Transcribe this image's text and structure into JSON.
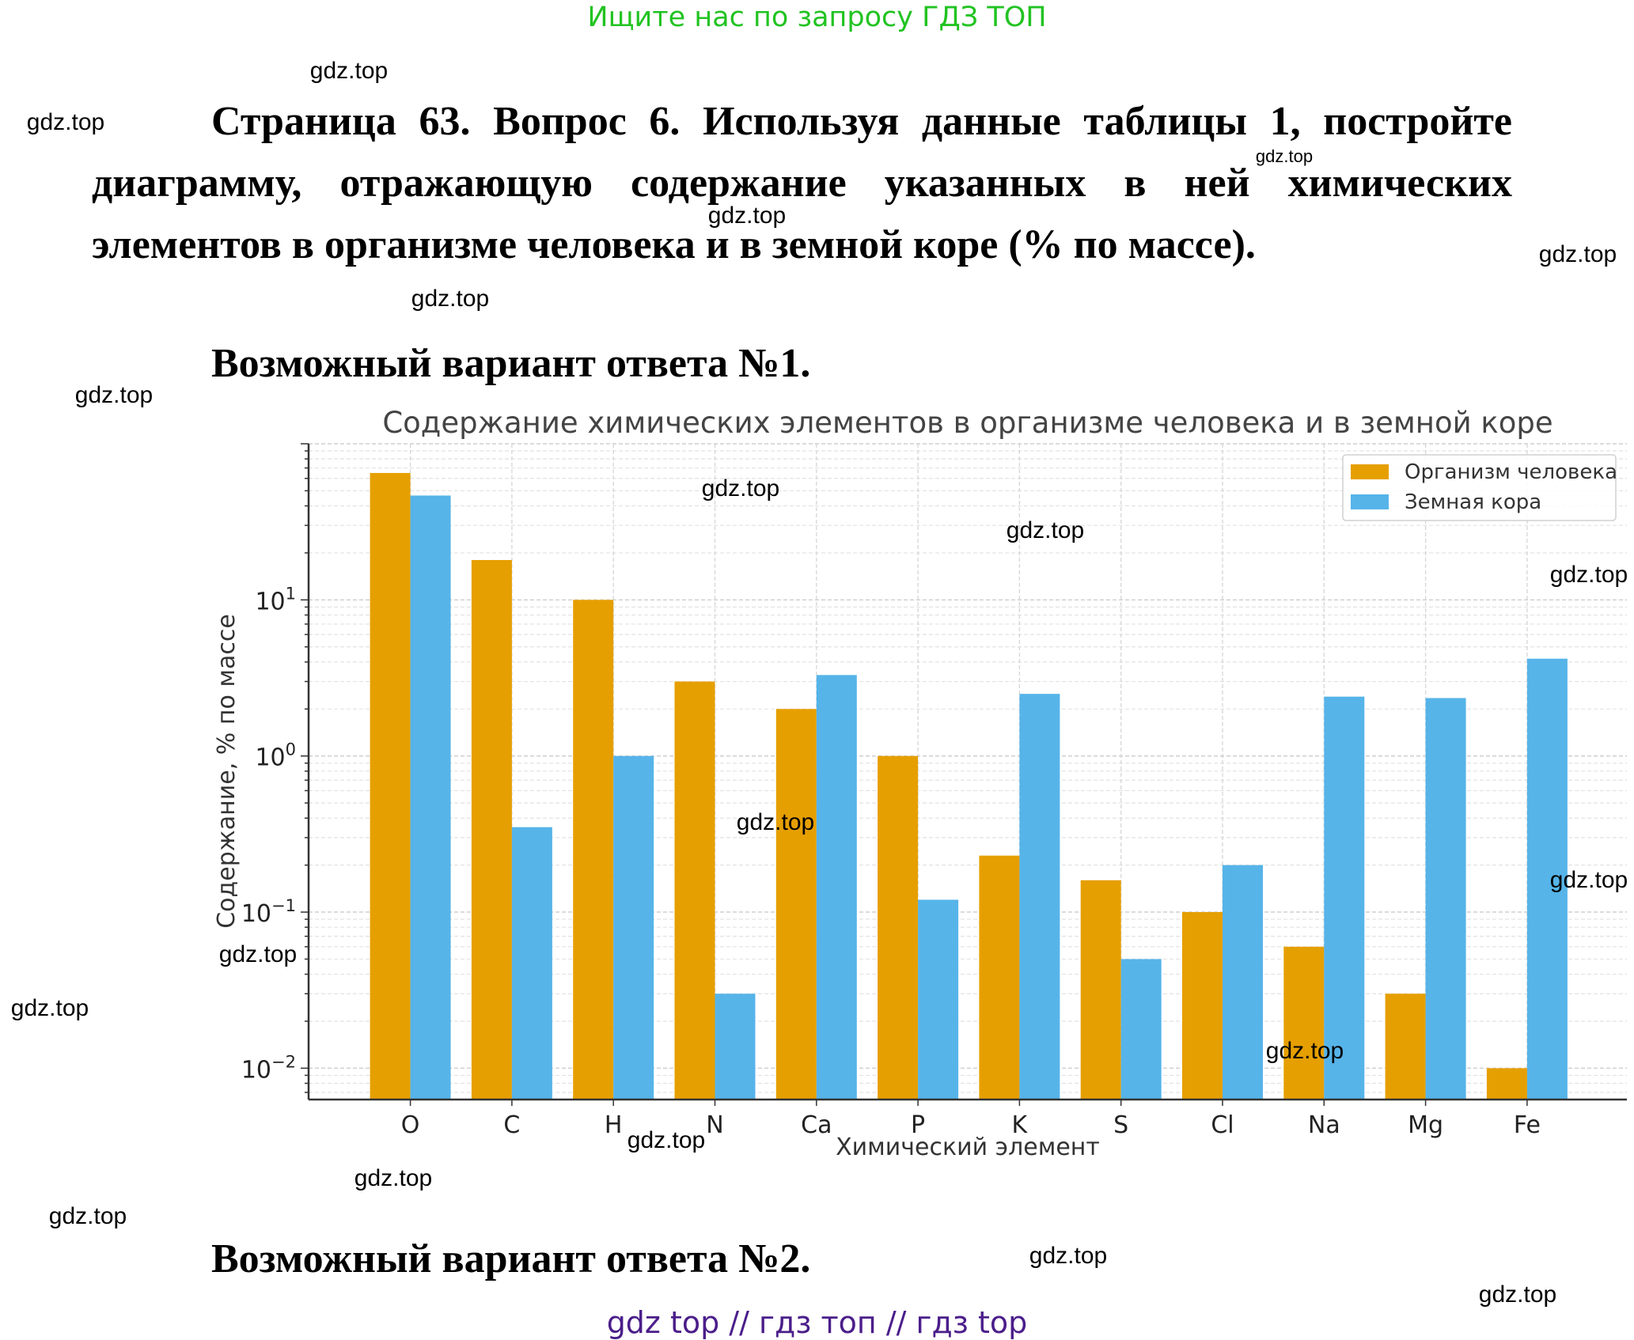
{
  "banner": "Ищите нас по запросу ГДЗ ТОП",
  "question": "Страница 63. Вопрос 6.      Используя данные таблицы 1, постройте диаграмму, отражающую содержание указанных в ней химических элементов в организме человека и в земной коре (% по массе).",
  "variant1": "Возможный вариант ответа №1.",
  "variant2": "Возможный вариант ответа №2.",
  "bottom_links": "gdz top  //  гдз топ  //  гдз top",
  "watermark_text": "gdz.top",
  "colors": {
    "human": "#E69F00",
    "crust": "#56B4E9",
    "banner": "#22c322",
    "links": "#4b1e8a"
  },
  "chart_data": {
    "type": "bar",
    "title": "Содержание химических элементов в организме человека и в земной коре",
    "xlabel": "Химический элемент",
    "ylabel": "Содержание, % по массе",
    "yscale": "log",
    "ylim": [
      0.0063,
      100
    ],
    "yticks": [
      {
        "value": 10,
        "base": "10",
        "exp": "1"
      },
      {
        "value": 1,
        "base": "10",
        "exp": "0"
      },
      {
        "value": 0.1,
        "base": "10",
        "exp": "−1"
      },
      {
        "value": 0.01,
        "base": "10",
        "exp": "−2"
      }
    ],
    "grid": true,
    "legend_position": "top-right",
    "categories": [
      "O",
      "C",
      "H",
      "N",
      "Ca",
      "P",
      "K",
      "S",
      "Cl",
      "Na",
      "Mg",
      "Fe"
    ],
    "series": [
      {
        "name": "Организм человека",
        "color": "#E69F00",
        "values": [
          65,
          18,
          10,
          3,
          2,
          1,
          0.23,
          0.16,
          0.1,
          0.06,
          0.03,
          0.01
        ]
      },
      {
        "name": "Земная кора",
        "color": "#56B4E9",
        "values": [
          46.6,
          0.35,
          1,
          0.03,
          3.3,
          0.12,
          2.5,
          0.05,
          0.2,
          2.4,
          2.35,
          4.2
        ]
      }
    ]
  }
}
